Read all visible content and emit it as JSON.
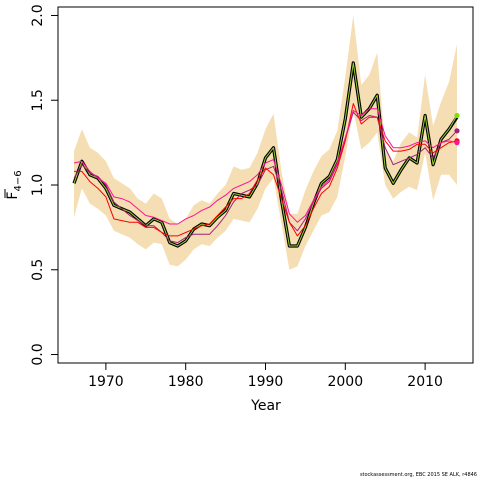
{
  "chart_data": {
    "type": "line",
    "xlabel": "Year",
    "ylabel": "F",
    "ylabel_sub": "4−6",
    "xlim": [
      1964,
      2016
    ],
    "ylim": [
      -0.05,
      2.05
    ],
    "x_ticks": [
      1970,
      1980,
      1990,
      2000,
      2010
    ],
    "x_tick_labels": [
      "1970",
      "1980",
      "1990",
      "2000",
      "2010"
    ],
    "y_ticks": [
      0.0,
      0.5,
      1.0,
      1.5,
      2.0
    ],
    "y_tick_labels": [
      "0.0",
      "0.5",
      "1.0",
      "1.5",
      "2.0"
    ],
    "grid": false,
    "x": [
      1966,
      1967,
      1968,
      1969,
      1970,
      1971,
      1972,
      1973,
      1974,
      1975,
      1976,
      1977,
      1978,
      1979,
      1980,
      1981,
      1982,
      1983,
      1984,
      1985,
      1986,
      1987,
      1988,
      1989,
      1990,
      1991,
      1992,
      1993,
      1994,
      1995,
      1996,
      1997,
      1998,
      1999,
      2000,
      2001,
      2002,
      2003,
      2004,
      2005,
      2006,
      2007,
      2008,
      2009,
      2010,
      2011,
      2012,
      2013,
      2014
    ],
    "band": {
      "color": "#f5deb3",
      "upper": [
        1.2,
        1.33,
        1.22,
        1.19,
        1.14,
        1.04,
        1.01,
        0.98,
        0.92,
        0.89,
        0.95,
        0.92,
        0.8,
        0.77,
        0.8,
        0.88,
        0.91,
        0.89,
        0.95,
        1.0,
        1.11,
        1.09,
        1.1,
        1.19,
        1.33,
        1.42,
        1.08,
        0.83,
        0.83,
        0.97,
        1.08,
        1.17,
        1.21,
        1.32,
        1.64,
        2.0,
        1.59,
        1.65,
        1.78,
        1.22,
        1.14,
        1.25,
        1.31,
        1.28,
        1.65,
        1.35,
        1.49,
        1.61,
        1.83
      ],
      "lower": [
        0.81,
        0.98,
        0.89,
        0.86,
        0.82,
        0.73,
        0.71,
        0.69,
        0.65,
        0.62,
        0.66,
        0.65,
        0.53,
        0.52,
        0.56,
        0.62,
        0.65,
        0.64,
        0.69,
        0.73,
        0.8,
        0.79,
        0.78,
        0.86,
        0.98,
        1.04,
        0.77,
        0.5,
        0.52,
        0.64,
        0.73,
        0.82,
        0.84,
        0.93,
        1.17,
        1.44,
        1.21,
        1.25,
        1.31,
        1.0,
        0.92,
        0.96,
        0.99,
        0.97,
        1.19,
        0.91,
        1.06,
        1.06,
        1.0
      ]
    },
    "series": [
      {
        "color": "#000000",
        "width": 3.2,
        "values": [
          1.01,
          1.14,
          1.06,
          1.04,
          0.98,
          0.88,
          0.86,
          0.84,
          0.8,
          0.76,
          0.8,
          0.78,
          0.66,
          0.64,
          0.67,
          0.74,
          0.77,
          0.76,
          0.81,
          0.85,
          0.95,
          0.94,
          0.93,
          1.01,
          1.16,
          1.22,
          0.91,
          0.64,
          0.64,
          0.75,
          0.89,
          1.01,
          1.05,
          1.15,
          1.39,
          1.72,
          1.4,
          1.45,
          1.53,
          1.1,
          1.01,
          1.09,
          1.16,
          1.13,
          1.41,
          1.12,
          1.27,
          1.33,
          1.4
        ],
        "marker": null
      },
      {
        "color": "#9acd32",
        "width": 1.0,
        "values": [
          1.01,
          1.14,
          1.06,
          1.04,
          0.98,
          0.88,
          0.86,
          0.84,
          0.8,
          0.76,
          0.8,
          0.78,
          0.66,
          0.64,
          0.67,
          0.74,
          0.77,
          0.76,
          0.81,
          0.85,
          0.95,
          0.94,
          0.93,
          1.01,
          1.16,
          1.22,
          0.91,
          0.64,
          0.64,
          0.75,
          0.89,
          1.01,
          1.05,
          1.15,
          1.39,
          1.72,
          1.4,
          1.45,
          1.53,
          1.1,
          1.01,
          1.09,
          1.16,
          1.13,
          1.41,
          1.12,
          1.27,
          1.33,
          1.41
        ],
        "marker": "#7fe000"
      },
      {
        "color": "#a0207a",
        "width": 1.0,
        "values": [
          1.04,
          1.12,
          1.07,
          1.05,
          1.0,
          0.9,
          0.86,
          0.82,
          0.79,
          0.76,
          0.76,
          0.72,
          0.67,
          0.66,
          0.69,
          0.71,
          0.71,
          0.71,
          0.76,
          0.82,
          0.9,
          0.95,
          0.97,
          1.0,
          1.09,
          1.11,
          0.97,
          0.78,
          0.73,
          0.8,
          0.9,
          0.98,
          1.02,
          1.12,
          1.27,
          1.43,
          1.38,
          1.41,
          1.4,
          1.22,
          1.12,
          1.14,
          1.16,
          1.18,
          1.22,
          1.16,
          1.25,
          1.27,
          1.32
        ],
        "marker": "#a0207a"
      },
      {
        "color": "#ff0000",
        "width": 1.0,
        "values": [
          1.08,
          1.08,
          1.02,
          0.98,
          0.93,
          0.8,
          0.79,
          0.78,
          0.78,
          0.75,
          0.75,
          0.72,
          0.7,
          0.7,
          0.72,
          0.74,
          0.76,
          0.77,
          0.82,
          0.87,
          0.92,
          0.92,
          0.95,
          1.03,
          1.1,
          1.06,
          0.92,
          0.78,
          0.7,
          0.76,
          0.86,
          0.95,
          0.99,
          1.1,
          1.26,
          1.48,
          1.36,
          1.4,
          1.4,
          1.26,
          1.2,
          1.2,
          1.21,
          1.24,
          1.24,
          1.19,
          1.22,
          1.25,
          1.26
        ],
        "marker": "#ff0000"
      },
      {
        "color": "#ff1493",
        "width": 1.0,
        "values": [
          1.13,
          1.14,
          1.08,
          1.04,
          1.01,
          0.93,
          0.92,
          0.9,
          0.86,
          0.82,
          0.81,
          0.79,
          0.77,
          0.77,
          0.8,
          0.82,
          0.85,
          0.87,
          0.91,
          0.94,
          0.98,
          1.0,
          1.02,
          1.06,
          1.13,
          1.15,
          1.0,
          0.83,
          0.78,
          0.82,
          0.91,
          0.99,
          1.03,
          1.13,
          1.28,
          1.44,
          1.41,
          1.45,
          1.45,
          1.29,
          1.22,
          1.22,
          1.23,
          1.25,
          1.26,
          1.22,
          1.25,
          1.26,
          1.25
        ],
        "marker": "#ff1493"
      }
    ]
  },
  "footer": "stockassessment.org, EBC 2015 SE ALK, r4846"
}
